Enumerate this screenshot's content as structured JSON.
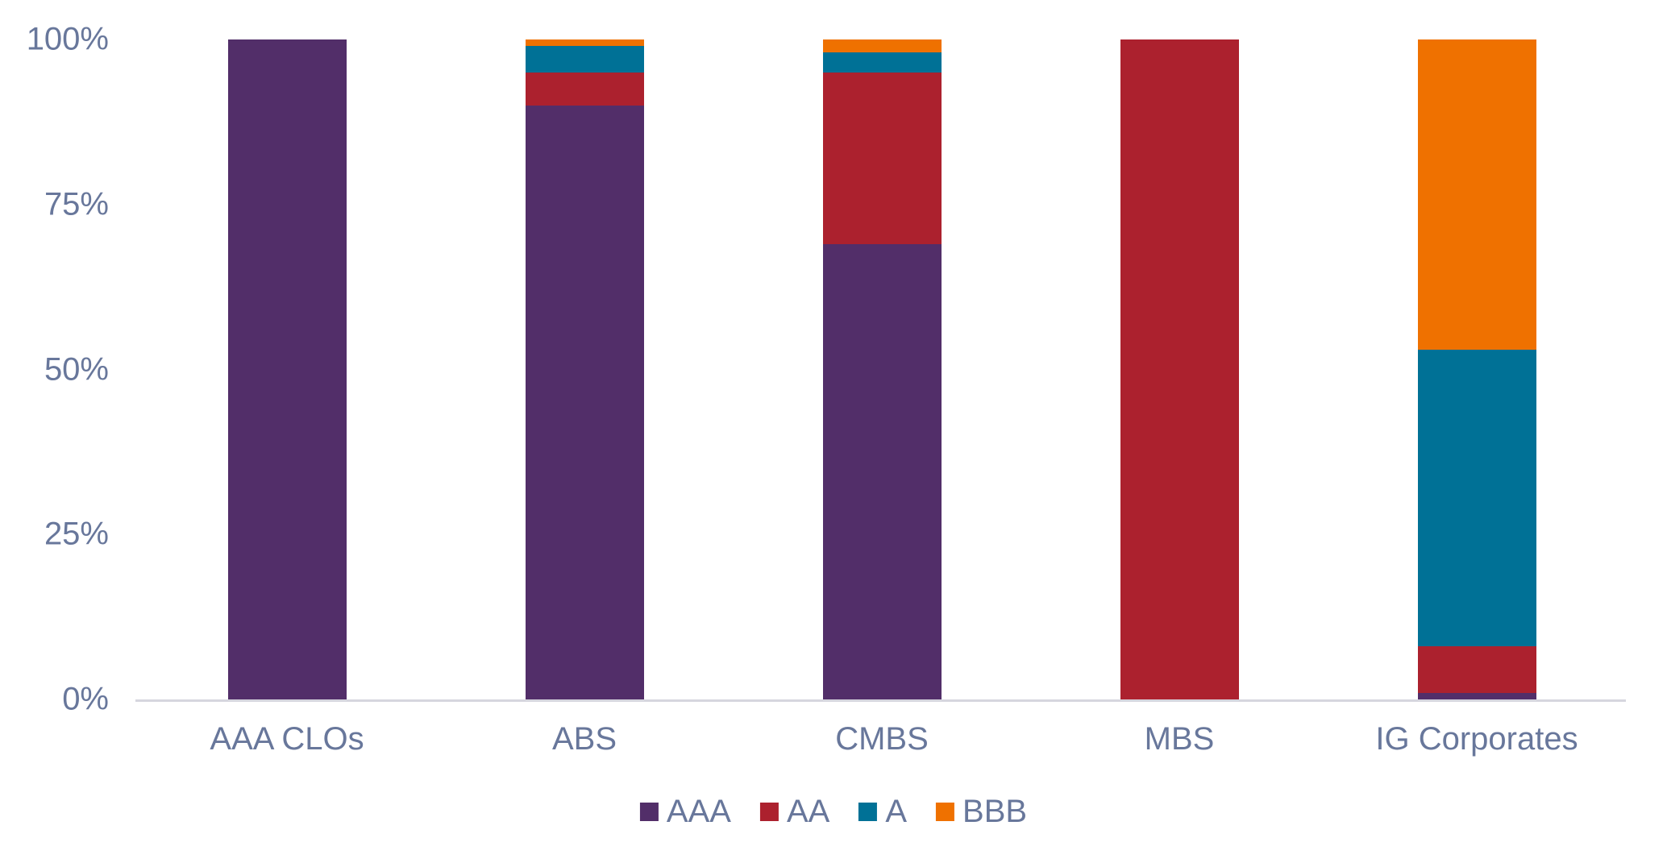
{
  "colors": {
    "aaa_purple": "#522E69",
    "aa_red": "#AC212E",
    "a_teal": "#007196",
    "bbb_orange": "#EF7100",
    "axis_line": "#D6D6DE",
    "label_text": "#68779B",
    "background": "#FFFFFF"
  },
  "chart_data": {
    "type": "bar",
    "stacked": true,
    "stacked_percent": true,
    "title": "",
    "xlabel": "",
    "ylabel": "",
    "grid": false,
    "legend_position": "bottom",
    "ylim": [
      0,
      100
    ],
    "y_ticks": [
      {
        "label": "100%",
        "value": 100
      },
      {
        "label": "75%",
        "value": 75
      },
      {
        "label": "50%",
        "value": 50
      },
      {
        "label": "25%",
        "value": 25
      },
      {
        "label": "0%",
        "value": 0
      }
    ],
    "categories": [
      "AAA CLOs",
      "ABS",
      "CMBS",
      "MBS",
      "IG Corporates"
    ],
    "series": [
      {
        "name": "AAA",
        "color": "#522E69",
        "values": [
          100,
          90,
          69,
          0,
          1
        ]
      },
      {
        "name": "AA",
        "color": "#AC212E",
        "values": [
          0,
          5,
          26,
          100,
          7
        ]
      },
      {
        "name": "A",
        "color": "#007196",
        "values": [
          0,
          4,
          3,
          0,
          45
        ]
      },
      {
        "name": "BBB",
        "color": "#EF7100",
        "values": [
          0,
          1,
          2,
          0,
          47
        ]
      }
    ],
    "legend": [
      "AAA",
      "AA",
      "A",
      "BBB"
    ]
  }
}
